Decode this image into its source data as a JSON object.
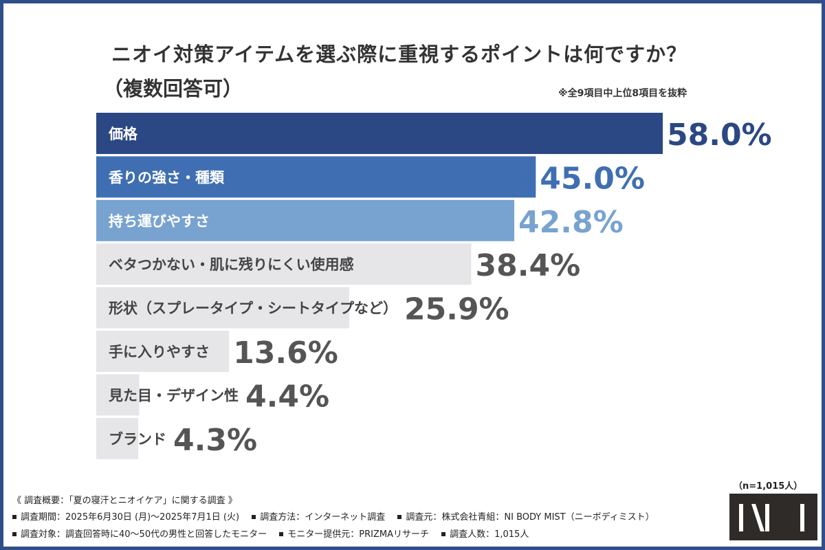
{
  "title": "ニオイ対策アイテムを選ぶ際に重視するポイントは何ですか？",
  "subtitle": "（複数回答可）",
  "note": "※全9項目中上位8項目を抜粋",
  "sample": "（n=1,015人）",
  "chart_data": {
    "type": "bar",
    "orientation": "horizontal",
    "unit": "%",
    "xlim": [
      0,
      58
    ],
    "categories": [
      "価格",
      "香りの強さ・種類",
      "持ち運びやすさ",
      "ベタつかない・肌に残りにくい使用感",
      "形状（スプレータイプ・シートタイプなど）",
      "手に入りやすさ",
      "見た目・デザイン性",
      "ブランド"
    ],
    "values": [
      58.0,
      45.0,
      42.8,
      38.4,
      25.9,
      13.6,
      4.4,
      4.3
    ],
    "value_labels": [
      "58.0%",
      "45.0%",
      "42.8%",
      "38.4%",
      "25.9%",
      "13.6%",
      "4.4%",
      "4.3%"
    ],
    "bar_colors": [
      "#2b4784",
      "#3f6fb2",
      "#78a3d0",
      "#e6e6e9",
      "#e6e6e9",
      "#e6e6e9",
      "#e6e6e9",
      "#e6e6e9"
    ],
    "label_colors": [
      "#ffffff",
      "#ffffff",
      "#ffffff",
      "#444444",
      "#444444",
      "#444444",
      "#444444",
      "#444444"
    ],
    "value_colors": [
      "#2b4784",
      "#3f6fb2",
      "#78a3d0",
      "#555555",
      "#555555",
      "#555555",
      "#555555",
      "#555555"
    ],
    "grid": false,
    "legend": "none"
  },
  "footer": {
    "survey_name": "《 調査概要：「夏の寝汗とニオイケア」に関する調査 》",
    "period": "調査期間：2025年6月30日 (月)〜2025年7月1日 (火)",
    "method": "調査方法：インターネット調査",
    "organizer": "調査元：株式会社青組：NI BODY MIST（ニーボディミスト）",
    "target": "調査対象：調査回答時に40〜50代の男性と回答したモニター",
    "provider": "モニター提供元：PRIZMAリサーチ",
    "count": "調査人数：1,015人"
  }
}
